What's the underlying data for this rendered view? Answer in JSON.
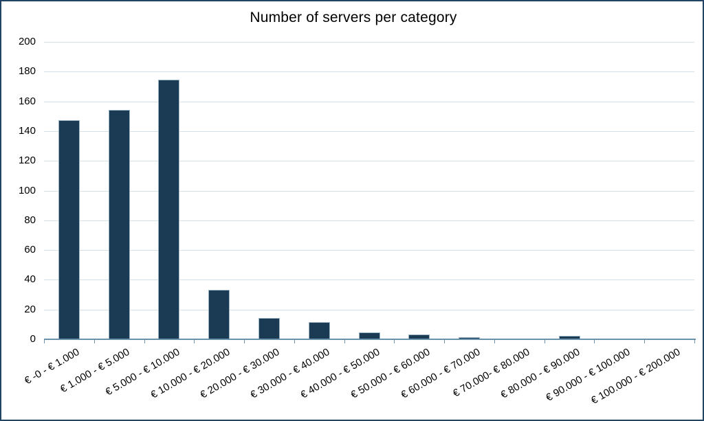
{
  "chart_data": {
    "type": "bar",
    "title": "Number of servers per category",
    "categories": [
      "€ -0 - € 1.000",
      "€ 1.000 - € 5.000",
      "€ 5.000 - € 10.000",
      "€ 10.000 - € 20.000",
      "€ 20.000 - € 30.000",
      "€ 30.000 - € 40.000",
      "€ 40.000 - € 50.000",
      "€ 50.000 - € 60.000",
      "€ 60.000 - € 70.000",
      "€ 70.000- € 80.000",
      "€ 80.000 - € 90.000",
      "€ 90.000 - € 100.000",
      "€ 100.000 - € 200.000"
    ],
    "values": [
      147,
      154,
      174,
      33,
      14,
      11,
      4,
      3,
      1,
      0,
      2,
      0,
      0
    ],
    "xlabel": "",
    "ylabel": "",
    "ylim": [
      0,
      200
    ],
    "ytick_step": 20,
    "yticks": [
      0,
      20,
      40,
      60,
      80,
      100,
      120,
      140,
      160,
      180,
      200
    ],
    "grid": true,
    "legend_position": "none",
    "colors": {
      "bar_fill": "#1b3a54",
      "bar_border": "#9cb6c6",
      "axis_line": "#6a91ab",
      "gridline": "#d3dee5",
      "text": "#000000",
      "frame_border": "#204564",
      "background": "#ffffff"
    }
  }
}
